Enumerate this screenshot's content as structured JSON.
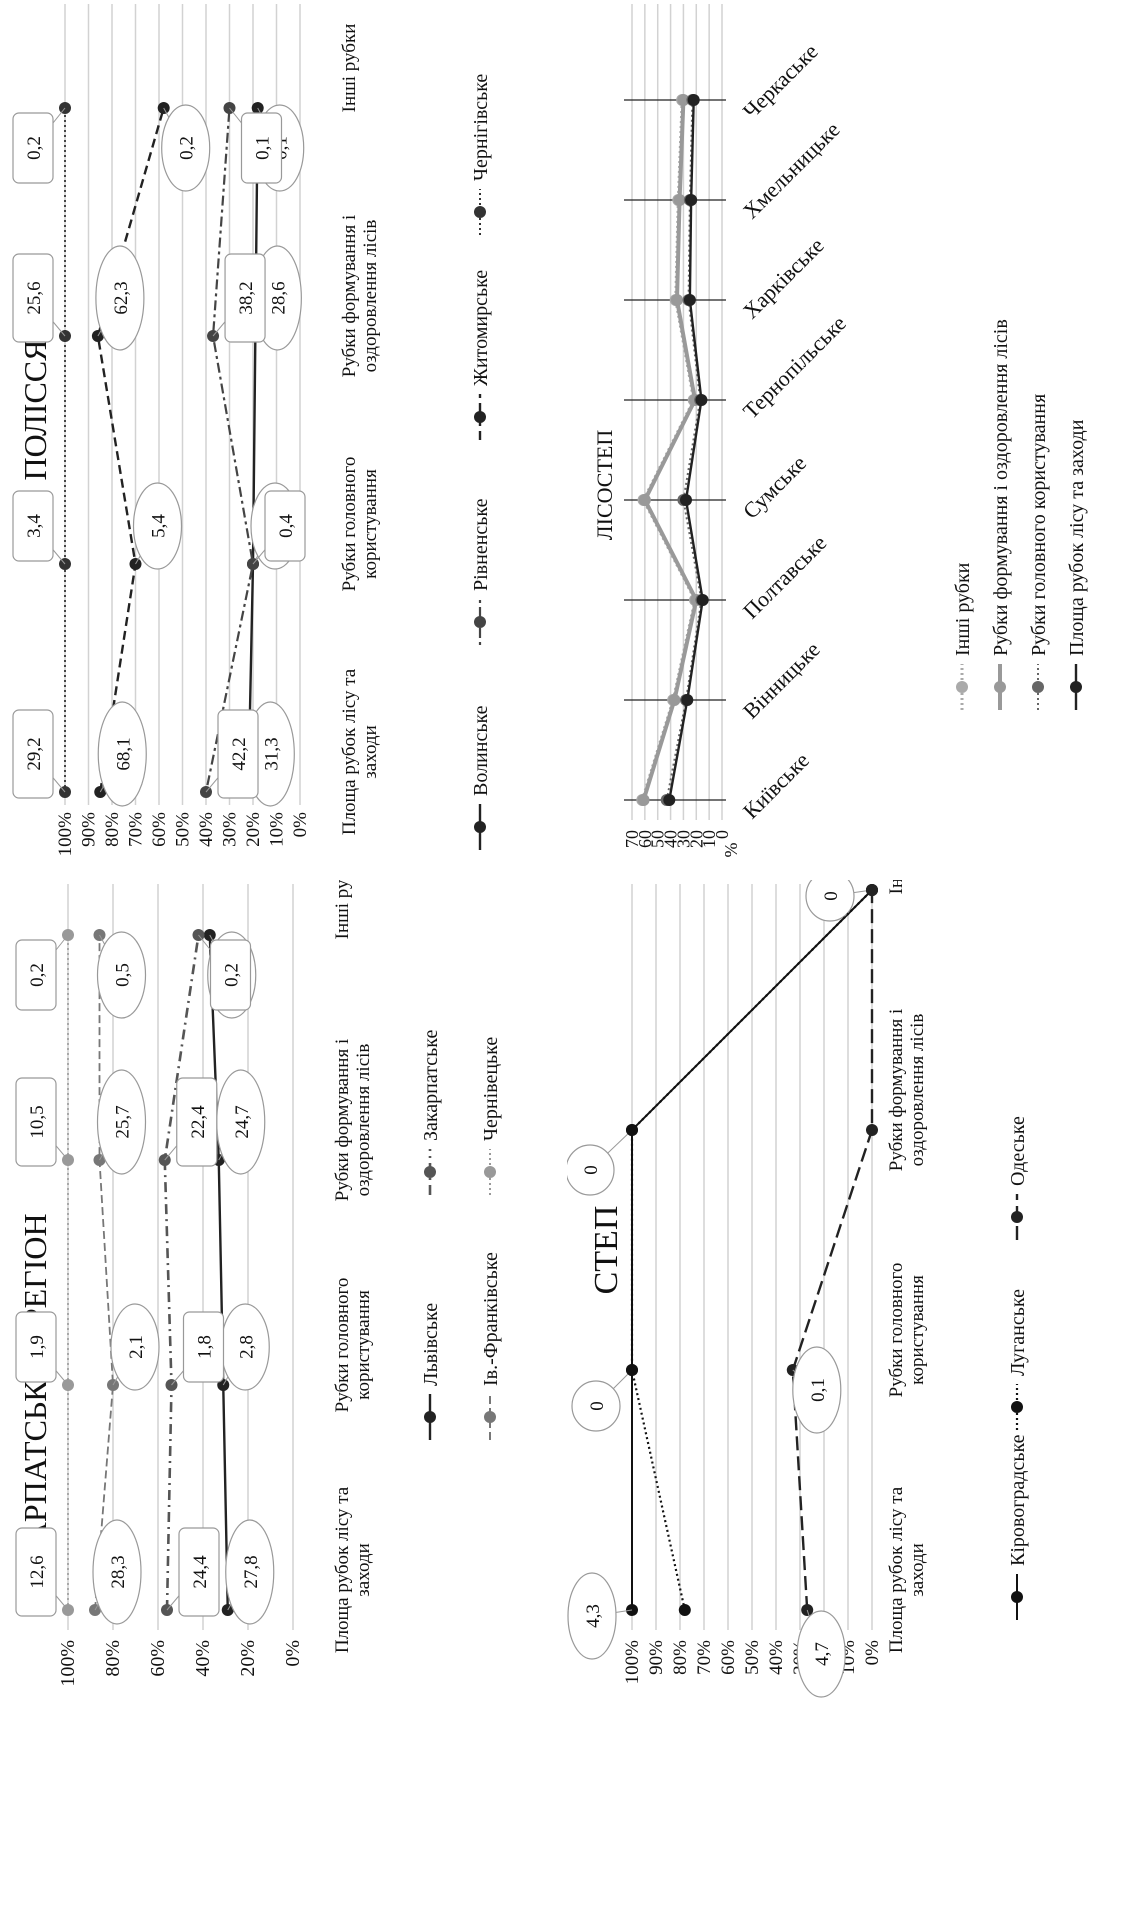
{
  "chart_data": [
    {
      "type": "line",
      "title": "ПОЛІССЯ",
      "categories": [
        "Площа рубок лісу та заходи",
        "Рубки головного користування",
        "Рубки формування і оздоровлення лісів",
        "Інші рубки"
      ],
      "y_ticks": [
        "100%",
        "90%",
        "80%",
        "70%",
        "60%",
        "50%",
        "40%",
        "30%",
        "20%",
        "10%",
        "0%"
      ],
      "ylim": [
        0,
        100
      ],
      "grid": true,
      "legend_position": "bottom",
      "series": [
        {
          "name": "Волинське",
          "values": [
            22,
            20,
            19,
            18
          ],
          "labels": [
            "31,3",
            "2,6",
            "28,6",
            "0,1"
          ],
          "color": "#222222",
          "dash": "solid",
          "width": 2.4
        },
        {
          "name": "Рівненське",
          "values": [
            40,
            20,
            37,
            30
          ],
          "labels": [
            "42,2",
            "0,4",
            "38,2",
            "0,1"
          ],
          "color": "#444444",
          "dash": "3,4,10,4",
          "width": 2.2
        },
        {
          "name": "Житомирське",
          "values": [
            85,
            70,
            86,
            58
          ],
          "labels": [
            "68,1",
            "5,4",
            "62,3",
            "0,2"
          ],
          "color": "#222222",
          "dash": "9,5",
          "width": 2.4
        },
        {
          "name": "Чернігівське",
          "values": [
            100,
            100,
            100,
            100
          ],
          "labels": [
            "29,2",
            "3,4",
            "25,6",
            "0,2"
          ],
          "color": "#333333",
          "dash": "2,3",
          "width": 1.8
        }
      ]
    },
    {
      "type": "line",
      "title": "КАРПАТСЬКИЙ РЕГІОН",
      "categories": [
        "Площа рубок лісу та заходи",
        "Рубки головного користування",
        "Рубки формування і оздоровлення лісів",
        "Інші рубки"
      ],
      "y_ticks": [
        "100%",
        "80%",
        "60%",
        "40%",
        "20%",
        "0%"
      ],
      "ylim": [
        0,
        100
      ],
      "grid": true,
      "legend_position": "bottom",
      "series": [
        {
          "name": "Львівське",
          "values": [
            29,
            31,
            33,
            37
          ],
          "labels": [
            "27,8",
            "2,8",
            "24,7",
            "0,3"
          ],
          "color": "#222222",
          "dash": "solid",
          "width": 2.4
        },
        {
          "name": "Закарпатське",
          "values": [
            56,
            54,
            57,
            42
          ],
          "labels": [
            "24,4",
            "1,8",
            "22,4",
            "0,2"
          ],
          "color": "#555555",
          "dash": "10,5,2,5",
          "width": 2.6
        },
        {
          "name": "Ів.-Франківське",
          "values": [
            88,
            80,
            86,
            86
          ],
          "labels": [
            "28,3",
            "2,1",
            "25,7",
            "0,5"
          ],
          "color": "#777777",
          "dash": "8,4",
          "width": 1.8
        },
        {
          "name": "Чернівецьке",
          "values": [
            100,
            100,
            100,
            100
          ],
          "labels": [
            "12,6",
            "1,9",
            "10,5",
            "0,2"
          ],
          "color": "#999999",
          "dash": "2,3",
          "width": 1.6
        }
      ]
    },
    {
      "type": "line",
      "title": "ЛІСОСТЕП",
      "categories": [
        "Київське",
        "Вінницьке",
        "Полтавське",
        "Сумське",
        "Тернопільське",
        "Харківське",
        "Хмельницьке",
        "Черкаське"
      ],
      "y_ticks": [
        "70",
        "60",
        "50",
        "40",
        "30",
        "20",
        "10",
        "0"
      ],
      "ylabel": "%",
      "ylim": [
        0,
        70
      ],
      "grid": true,
      "legend_position": "bottom",
      "series": [
        {
          "name": "Інші рубки",
          "values": [
            62,
            38,
            21,
            61,
            22,
            36,
            34,
            31
          ],
          "color": "#aaaaaa",
          "dash": "2,3",
          "width": 3
        },
        {
          "name": "Рубки формування і оздоровлення лісів",
          "values": [
            61,
            37,
            20,
            60,
            21,
            35,
            33,
            30
          ],
          "color": "#999999",
          "dash": "solid",
          "width": 4
        },
        {
          "name": "Рубки головного користування",
          "values": [
            43,
            28,
            16,
            30,
            17,
            26,
            25,
            23
          ],
          "color": "#666666",
          "dash": "2,3",
          "width": 2
        },
        {
          "name": "Площа рубок лісу та заходи",
          "values": [
            41,
            27,
            15,
            28,
            16,
            25,
            24,
            22
          ],
          "color": "#222222",
          "dash": "solid",
          "width": 2.4
        }
      ]
    },
    {
      "type": "line",
      "title": "СТЕП",
      "categories": [
        "Площа рубок лісу та заходи",
        "Рубки головного користування",
        "Рубки формування і оздоровлення лісів",
        "Інші рубки"
      ],
      "y_ticks": [
        "100%",
        "90%",
        "80%",
        "70%",
        "60%",
        "50%",
        "40%",
        "30%",
        "20%",
        "10%",
        "0%"
      ],
      "ylim": [
        0,
        100
      ],
      "grid": true,
      "legend_position": "bottom",
      "series": [
        {
          "name": "Кіровоградське",
          "values": [
            100,
            100,
            100,
            0
          ],
          "labels": [
            "4,3",
            "0",
            "0",
            "0"
          ],
          "color": "#111111",
          "dash": "solid",
          "width": 2
        },
        {
          "name": "Луганське",
          "values": [
            78,
            100,
            100,
            0
          ],
          "labels": [
            "",
            "",
            "",
            ""
          ],
          "color": "#111111",
          "dash": "2,3",
          "width": 2.2
        },
        {
          "name": "Одеське",
          "values": [
            27,
            33,
            0,
            0
          ],
          "labels": [
            "4,7",
            "0,1",
            "",
            ""
          ],
          "color": "#222222",
          "dash": "14,6",
          "width": 2.4
        }
      ]
    }
  ]
}
